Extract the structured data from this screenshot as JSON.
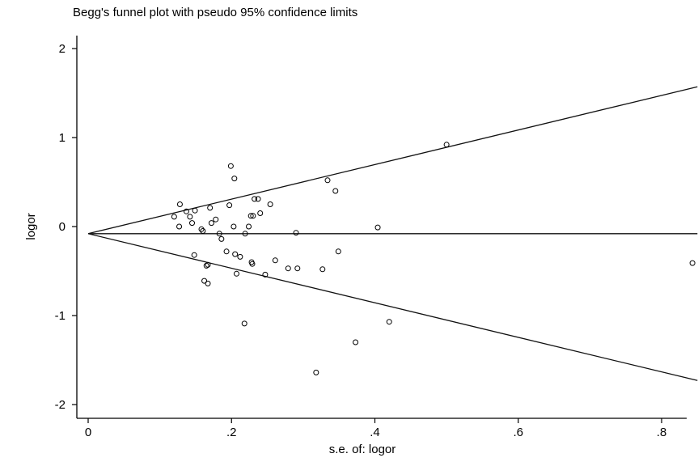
{
  "chart_data": {
    "type": "scatter",
    "title": "Begg's funnel plot with pseudo 95% confidence limits",
    "xlabel": "s.e. of: logor",
    "ylabel": "logor",
    "xlim": [
      0,
      0.85
    ],
    "ylim": [
      -2.05,
      2.05
    ],
    "xticks": [
      0,
      0.2,
      0.4,
      0.6,
      0.8
    ],
    "xtick_labels": [
      "0",
      ".2",
      ".4",
      ".6",
      ".8"
    ],
    "yticks": [
      -2,
      -1,
      0,
      1,
      2
    ],
    "ytick_labels": [
      "-2",
      "-1",
      "0",
      "1",
      "2"
    ],
    "grid": false,
    "pooled_estimate": -0.08,
    "reference_lines": {
      "center": {
        "x": [
          0,
          0.85
        ],
        "y": [
          -0.08,
          -0.08
        ]
      },
      "upper_limit": {
        "x": [
          0,
          0.85
        ],
        "y": [
          -0.08,
          1.57
        ]
      },
      "lower_limit": {
        "x": [
          0,
          0.85
        ],
        "y": [
          -0.08,
          -1.73
        ]
      }
    },
    "series": [
      {
        "marker": "hollow-circle",
        "points": [
          {
            "x": 0.12,
            "y": 0.11
          },
          {
            "x": 0.128,
            "y": 0.25
          },
          {
            "x": 0.127,
            "y": 0.0
          },
          {
            "x": 0.137,
            "y": 0.17
          },
          {
            "x": 0.142,
            "y": 0.11
          },
          {
            "x": 0.145,
            "y": 0.04
          },
          {
            "x": 0.149,
            "y": 0.18
          },
          {
            "x": 0.148,
            "y": -0.32
          },
          {
            "x": 0.158,
            "y": -0.03
          },
          {
            "x": 0.16,
            "y": -0.05
          },
          {
            "x": 0.162,
            "y": -0.61
          },
          {
            "x": 0.165,
            "y": -0.44
          },
          {
            "x": 0.167,
            "y": -0.64
          },
          {
            "x": 0.167,
            "y": -0.43
          },
          {
            "x": 0.17,
            "y": 0.21
          },
          {
            "x": 0.172,
            "y": 0.04
          },
          {
            "x": 0.178,
            "y": 0.08
          },
          {
            "x": 0.183,
            "y": -0.08
          },
          {
            "x": 0.186,
            "y": -0.14
          },
          {
            "x": 0.193,
            "y": -0.28
          },
          {
            "x": 0.197,
            "y": 0.24
          },
          {
            "x": 0.199,
            "y": 0.68
          },
          {
            "x": 0.204,
            "y": 0.54
          },
          {
            "x": 0.203,
            "y": 0.0
          },
          {
            "x": 0.205,
            "y": -0.31
          },
          {
            "x": 0.207,
            "y": -0.53
          },
          {
            "x": 0.212,
            "y": -0.34
          },
          {
            "x": 0.218,
            "y": -1.09
          },
          {
            "x": 0.219,
            "y": -0.08
          },
          {
            "x": 0.224,
            "y": 0.0
          },
          {
            "x": 0.227,
            "y": 0.12
          },
          {
            "x": 0.23,
            "y": 0.12
          },
          {
            "x": 0.228,
            "y": -0.4
          },
          {
            "x": 0.229,
            "y": -0.42
          },
          {
            "x": 0.232,
            "y": 0.31
          },
          {
            "x": 0.237,
            "y": 0.31
          },
          {
            "x": 0.24,
            "y": 0.15
          },
          {
            "x": 0.247,
            "y": -0.54
          },
          {
            "x": 0.254,
            "y": 0.25
          },
          {
            "x": 0.261,
            "y": -0.38
          },
          {
            "x": 0.279,
            "y": -0.47
          },
          {
            "x": 0.29,
            "y": -0.07
          },
          {
            "x": 0.292,
            "y": -0.47
          },
          {
            "x": 0.318,
            "y": -1.64
          },
          {
            "x": 0.327,
            "y": -0.48
          },
          {
            "x": 0.334,
            "y": 0.52
          },
          {
            "x": 0.345,
            "y": 0.4
          },
          {
            "x": 0.349,
            "y": -0.28
          },
          {
            "x": 0.373,
            "y": -1.3
          },
          {
            "x": 0.404,
            "y": -0.01
          },
          {
            "x": 0.42,
            "y": -1.07
          },
          {
            "x": 0.5,
            "y": 0.92
          },
          {
            "x": 0.843,
            "y": -0.41
          }
        ]
      }
    ]
  }
}
